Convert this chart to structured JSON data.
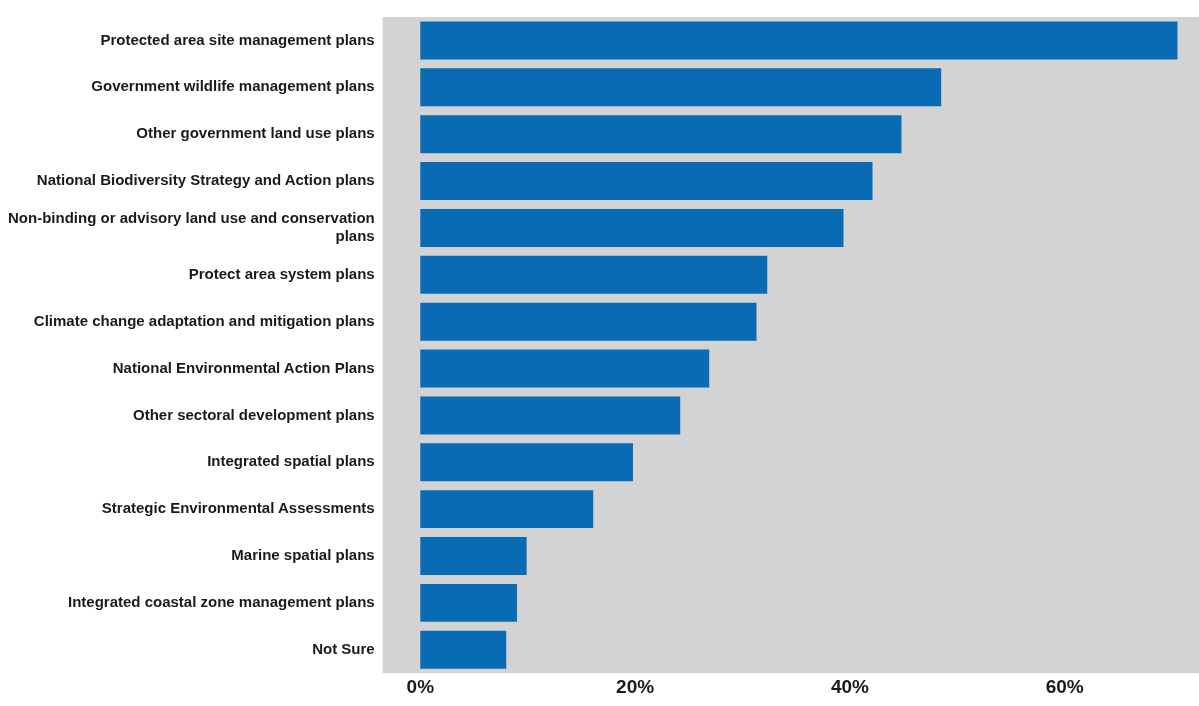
{
  "chart_data": {
    "type": "bar",
    "orientation": "horizontal",
    "categories": [
      "Protected area site management plans",
      "Government wildlife management plans",
      "Other government land use plans",
      "National Biodiversity Strategy and Action plans",
      "Non-binding or advisory land use and conservation plans",
      "Protect area system plans",
      "Climate change adaptation and mitigation plans",
      "National Environmental Action Plans",
      "Other sectoral development plans",
      "Integrated spatial plans",
      "Strategic Environmental Assessments",
      "Marine spatial plans",
      "Integrated coastal zone management plans",
      "Not Sure"
    ],
    "values": [
      70.5,
      48.5,
      44.8,
      42.1,
      39.4,
      32.3,
      31.3,
      26.9,
      24.2,
      19.8,
      16.1,
      9.9,
      9.0,
      8.0
    ],
    "color": "#0a6bb5",
    "xlim": [
      -3.5,
      72.5
    ],
    "xticks": [
      {
        "value": 0,
        "label": "0%"
      },
      {
        "value": 20,
        "label": "20%"
      },
      {
        "value": 40,
        "label": "40%"
      },
      {
        "value": 60,
        "label": "60%"
      }
    ],
    "grid": false,
    "legend": false
  }
}
